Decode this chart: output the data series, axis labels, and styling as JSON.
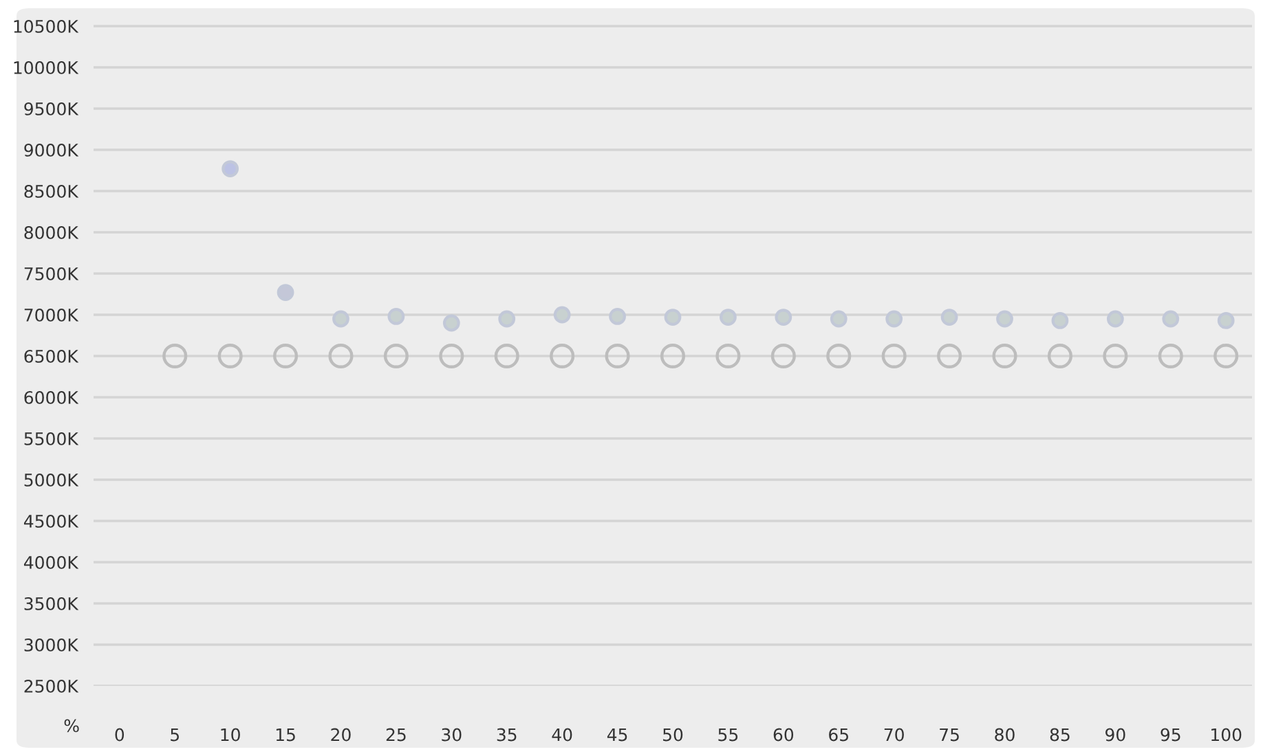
{
  "chart_data": {
    "type": "scatter",
    "xlabel": "%",
    "categories": [
      "0",
      "5",
      "10",
      "15",
      "20",
      "25",
      "30",
      "35",
      "40",
      "45",
      "50",
      "55",
      "60",
      "65",
      "70",
      "75",
      "80",
      "85",
      "90",
      "95",
      "100"
    ],
    "series": [
      {
        "color": "#c2c8d8",
        "colors": [
          "#b3bbe6",
          "#b3bbe6",
          "#bcc2e4",
          "#c4c7d8",
          "#c8d1d0",
          "#c8d1d0",
          "#c8d1d0",
          "#c8d1d0",
          "#c8d1d0",
          "#c8d1d0",
          "#c8d1d0",
          "#c8d1d0",
          "#c8d1d0",
          "#c8d1d0",
          "#c8d1d0",
          "#c8d1d0",
          "#c8d1d0",
          "#c8d1d0",
          "#c8d1d0",
          "#c8d1d0",
          "#c8d1d0"
        ],
        "values": [
          null,
          null,
          8770,
          7270,
          6950,
          6980,
          6900,
          6950,
          7000,
          6980,
          6970,
          6970,
          6970,
          6950,
          6950,
          6970,
          6950,
          6930,
          6950,
          6950,
          6930
        ]
      },
      {
        "color": "#bdbdbd",
        "values": [
          null,
          6500,
          6500,
          6500,
          6500,
          6500,
          6500,
          6500,
          6500,
          6500,
          6500,
          6500,
          6500,
          6500,
          6500,
          6500,
          6500,
          6500,
          6500,
          6500,
          6500
        ]
      }
    ],
    "ylim": [
      2500,
      10750
    ],
    "yticks": [
      {
        "value": 2500,
        "label": "2500K"
      },
      {
        "value": 3000,
        "label": "3000K"
      },
      {
        "value": 3500,
        "label": "3500K"
      },
      {
        "value": 4000,
        "label": "4000K"
      },
      {
        "value": 4500,
        "label": "4500K"
      },
      {
        "value": 5000,
        "label": "5000K"
      },
      {
        "value": 5500,
        "label": "5500K"
      },
      {
        "value": 6000,
        "label": "6000K"
      },
      {
        "value": 6500,
        "label": "6500K"
      },
      {
        "value": 7000,
        "label": "7000K"
      },
      {
        "value": 7500,
        "label": "7500K"
      },
      {
        "value": 8000,
        "label": "8000K"
      },
      {
        "value": 8500,
        "label": "8500K"
      },
      {
        "value": 9000,
        "label": "9000K"
      },
      {
        "value": 9500,
        "label": "9500K"
      },
      {
        "value": 10000,
        "label": "10000K"
      },
      {
        "value": 10500,
        "label": "10500K"
      }
    ],
    "grid": "y",
    "marker": "circle"
  }
}
